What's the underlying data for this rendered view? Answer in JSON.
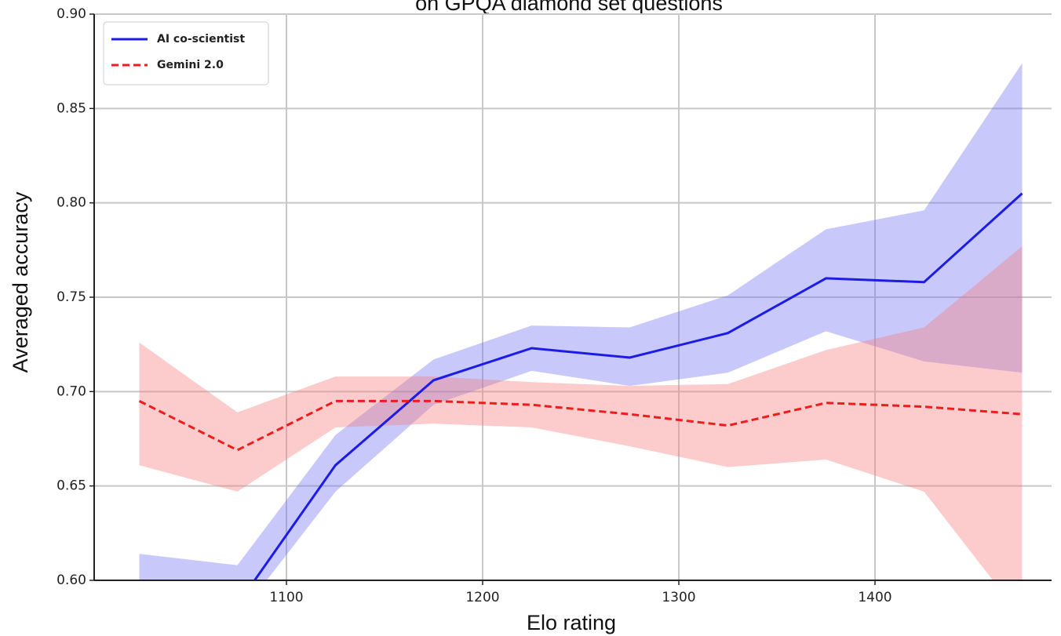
{
  "chart_data": {
    "type": "line",
    "title": "on GPQA diamond set questions",
    "xlabel": "Elo rating",
    "ylabel": "Averaged accuracy",
    "x": [
      1025,
      1075,
      1125,
      1175,
      1225,
      1275,
      1325,
      1375,
      1425,
      1475
    ],
    "series": [
      {
        "name": "AI co-scientist",
        "color": "#1c1ce6",
        "band_color": "#6e6ef5",
        "dashed": false,
        "values": [
          0.58,
          0.587,
          0.661,
          0.706,
          0.723,
          0.718,
          0.731,
          0.76,
          0.758,
          0.805
        ],
        "upper": [
          0.614,
          0.608,
          0.677,
          0.717,
          0.735,
          0.734,
          0.751,
          0.786,
          0.796,
          0.874
        ],
        "lower": [
          0.58,
          0.58,
          0.647,
          0.693,
          0.711,
          0.703,
          0.71,
          0.732,
          0.716,
          0.71
        ]
      },
      {
        "name": "Gemini 2.0",
        "color": "#ee1c1c",
        "band_color": "#f77a7a",
        "dashed": true,
        "values": [
          0.695,
          0.669,
          0.695,
          0.695,
          0.693,
          0.688,
          0.682,
          0.694,
          0.692,
          0.688
        ],
        "upper": [
          0.726,
          0.689,
          0.708,
          0.708,
          0.705,
          0.703,
          0.704,
          0.722,
          0.734,
          0.777
        ],
        "lower": [
          0.661,
          0.647,
          0.681,
          0.683,
          0.681,
          0.671,
          0.66,
          0.664,
          0.647,
          0.58
        ]
      }
    ],
    "xlim": [
      1002,
      1490
    ],
    "ylim": [
      0.6,
      0.9
    ],
    "xticks": [
      1100,
      1200,
      1300,
      1400
    ],
    "yticks": [
      {
        "value": 0.6,
        "label": "0.60"
      },
      {
        "value": 0.65,
        "label": "0.65"
      },
      {
        "value": 0.7,
        "label": "0.70"
      },
      {
        "value": 0.75,
        "label": "0.75"
      },
      {
        "value": 0.8,
        "label": "0.80"
      },
      {
        "value": 0.85,
        "label": "0.85"
      },
      {
        "value": 0.9,
        "label": "0.90"
      }
    ],
    "grid": true,
    "legend": "upper left"
  }
}
